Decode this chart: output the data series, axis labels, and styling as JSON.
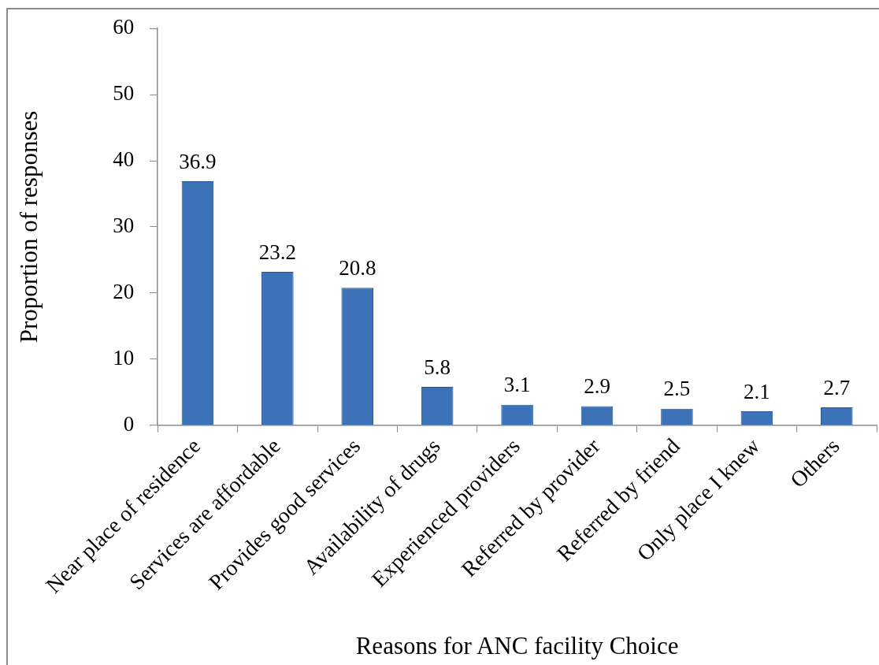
{
  "chart_data": {
    "type": "bar",
    "xlabel": "Reasons for ANC facility Choice",
    "ylabel": "Proportion of responses",
    "categories": [
      "Near place of residence",
      "Services are affordable",
      "Provides good services",
      "Availability of drugs",
      "Experienced providers",
      "Referred by provider",
      "Referred by friend",
      "Only place I knew",
      "Others"
    ],
    "values": [
      36.9,
      23.2,
      20.8,
      5.8,
      3.1,
      2.9,
      2.5,
      2.1,
      2.7
    ],
    "color": "#3b72b8",
    "ylim": [
      0,
      60
    ],
    "yticks": [
      0,
      10,
      20,
      30,
      40,
      50,
      60
    ],
    "data_labels": true
  }
}
